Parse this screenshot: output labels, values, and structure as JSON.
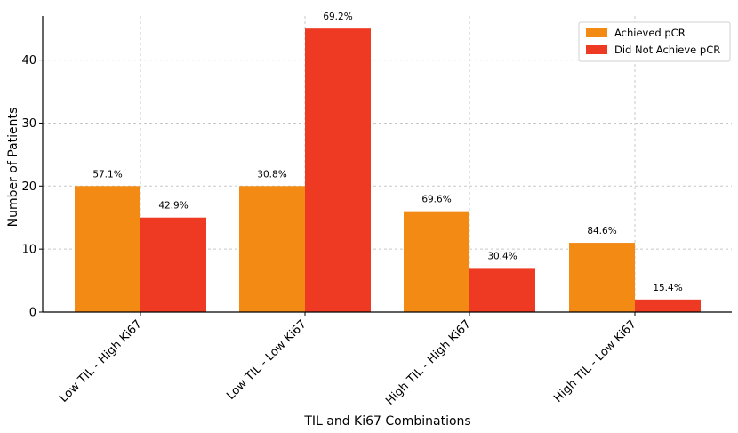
{
  "chart_data": {
    "type": "bar",
    "title": "",
    "xlabel": "TIL and Ki67 Combinations",
    "ylabel": "Number of Patients",
    "categories": [
      "Low TIL - High Ki67",
      "Low TIL - Low Ki67",
      "High TIL - High Ki67",
      "High TIL - Low Ki67"
    ],
    "yticks": [
      "0",
      "10",
      "20",
      "30",
      "40"
    ],
    "ylim": [
      0,
      47
    ],
    "grid": true,
    "legend_position": "top-right",
    "series": [
      {
        "name": "Achieved pCR",
        "color": "#F28A14",
        "values": [
          20,
          20,
          16,
          11
        ],
        "labels": [
          "57.1%",
          "30.8%",
          "69.6%",
          "84.6%"
        ]
      },
      {
        "name": "Did Not Achieve pCR",
        "color": "#EE3A22",
        "values": [
          15,
          45,
          7,
          2
        ],
        "labels": [
          "42.9%",
          "69.2%",
          "30.4%",
          "15.4%"
        ]
      }
    ]
  }
}
